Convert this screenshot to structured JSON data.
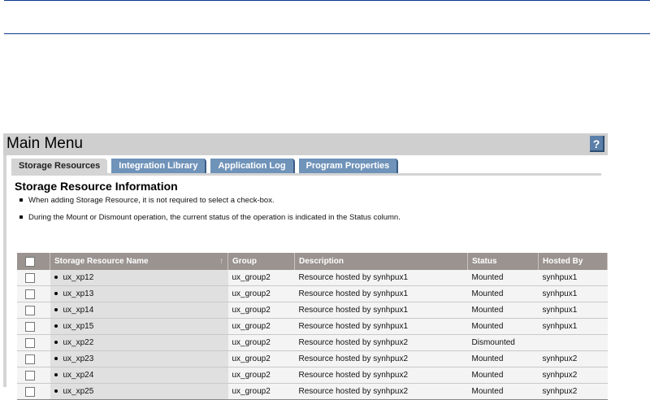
{
  "main_menu": {
    "title": "Main Menu",
    "help_label": "?"
  },
  "tabs": [
    {
      "label": "Storage Resources",
      "active": true
    },
    {
      "label": "Integration Library"
    },
    {
      "label": "Application Log"
    },
    {
      "label": "Program Properties"
    }
  ],
  "section": {
    "heading": "Storage Resource Information",
    "notes": [
      "When adding Storage Resource, it is not required to select a check-box.",
      "During the Mount or Dismount operation, the current status of the operation is indicated in the Status column."
    ]
  },
  "table": {
    "sort_indicator": "↑",
    "columns": [
      "Storage Resource Name",
      "Group",
      "Description",
      "Status",
      "Hosted By"
    ],
    "rows": [
      [
        "ux_xp12",
        "ux_group2",
        "Resource hosted by synhpux1",
        "Mounted",
        "synhpux1"
      ],
      [
        "ux_xp13",
        "ux_group2",
        "Resource hosted by synhpux1",
        "Mounted",
        "synhpux1"
      ],
      [
        "ux_xp14",
        "ux_group2",
        "Resource hosted by synhpux1",
        "Mounted",
        "synhpux1"
      ],
      [
        "ux_xp15",
        "ux_group2",
        "Resource hosted by synhpux1",
        "Mounted",
        "synhpux1"
      ],
      [
        "ux_xp22",
        "ux_group2",
        "Resource hosted by synhpux2",
        "Dismounted",
        ""
      ],
      [
        "ux_xp23",
        "ux_group2",
        "Resource hosted by synhpux2",
        "Mounted",
        "synhpux2"
      ],
      [
        "ux_xp24",
        "ux_group2",
        "Resource hosted by synhpux2",
        "Mounted",
        "synhpux2"
      ],
      [
        "ux_xp25",
        "ux_group2",
        "Resource hosted by synhpux2",
        "Mounted",
        "synhpux2"
      ]
    ]
  }
}
